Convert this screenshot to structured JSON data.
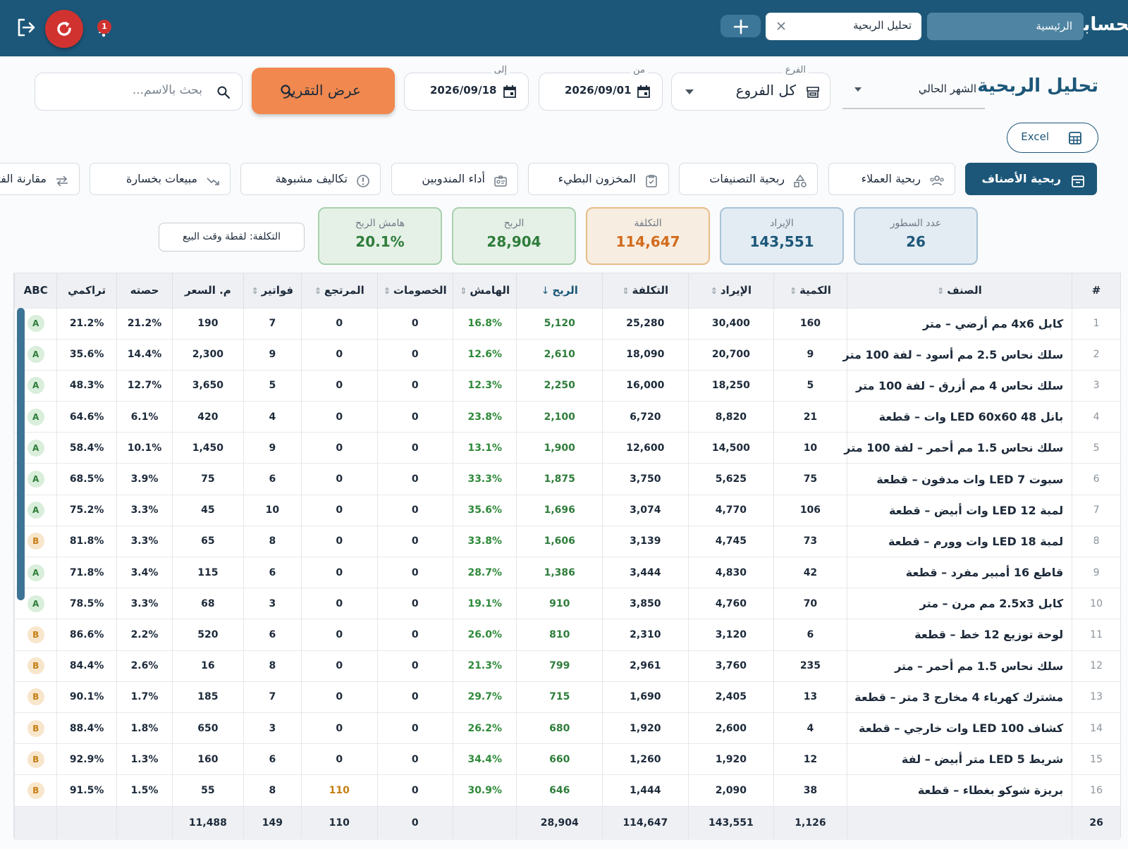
{
  "header": {
    "app_title": "الحسابات الثنائية",
    "tabs": [
      {
        "label": "الرئيسية"
      },
      {
        "label": "تحليل الربحية"
      }
    ],
    "notification_count": "1"
  },
  "filters": {
    "page_title": "تحليل الربحية",
    "period_value": "الشهر الحالي",
    "branch_caption": "الفرع",
    "branch_value": "كل الفروع",
    "from_caption": "من",
    "from_value": "2026/09/01",
    "to_caption": "إلى",
    "to_value": "2026/09/18",
    "report_button": "عرض التقرير",
    "search_placeholder": "بحث بالاسم..."
  },
  "excel_label": "Excel",
  "report_tabs": [
    {
      "label": "ربحية الأصناف",
      "active": true
    },
    {
      "label": "ربحية العملاء"
    },
    {
      "label": "ربحية التصنيفات"
    },
    {
      "label": "المخزون البطيء"
    },
    {
      "label": "أداء المندوبين"
    },
    {
      "label": "تكاليف مشبوهة"
    },
    {
      "label": "مبيعات بخسارة"
    },
    {
      "label": "مقارنة الفترات"
    }
  ],
  "kpis": [
    {
      "label": "عدد السطور",
      "value": "26"
    },
    {
      "label": "الإيراد",
      "value": "143,551"
    },
    {
      "label": "التكلفة",
      "value": "114,647"
    },
    {
      "label": "الربح",
      "value": "28,904"
    },
    {
      "label": "هامش الربح",
      "value": "20.1%"
    }
  ],
  "cost_note": "التكلفة: لقطة وقت البيع",
  "table": {
    "columns": [
      "#",
      "الصنف",
      "الكمية",
      "الإيراد",
      "التكلفة",
      "الربح",
      "الهامش",
      "الخصومات",
      "المرتجع",
      "فواتير",
      "م. السعر",
      "حصته",
      "تراكمي",
      "ABC"
    ],
    "rows": [
      [
        "1",
        "كابل 4x6 مم أرضي – متر",
        "160",
        "30,400",
        "25,280",
        "5,120",
        "16.8%",
        "0",
        "0",
        "7",
        "190",
        "21.2%",
        "21.2%",
        "A"
      ],
      [
        "2",
        "سلك نحاس 2.5 مم أسود – لفة 100 متر",
        "9",
        "20,700",
        "18,090",
        "2,610",
        "12.6%",
        "0",
        "0",
        "9",
        "2,300",
        "14.4%",
        "35.6%",
        "A"
      ],
      [
        "3",
        "سلك نحاس 4 مم أزرق – لفة 100 متر",
        "5",
        "18,250",
        "16,000",
        "2,250",
        "12.3%",
        "0",
        "0",
        "5",
        "3,650",
        "12.7%",
        "48.3%",
        "A"
      ],
      [
        "4",
        "بانل LED 60x60 48 وات – قطعة",
        "21",
        "8,820",
        "6,720",
        "2,100",
        "23.8%",
        "0",
        "0",
        "4",
        "420",
        "6.1%",
        "64.6%",
        "A"
      ],
      [
        "5",
        "سلك نحاس 1.5 مم أحمر – لفة 100 متر",
        "10",
        "14,500",
        "12,600",
        "1,900",
        "13.1%",
        "0",
        "0",
        "9",
        "1,450",
        "10.1%",
        "58.4%",
        "A"
      ],
      [
        "6",
        "سبوت LED 7 وات مدفون – قطعة",
        "75",
        "5,625",
        "3,750",
        "1,875",
        "33.3%",
        "0",
        "0",
        "6",
        "75",
        "3.9%",
        "68.5%",
        "A"
      ],
      [
        "7",
        "لمبة LED 12 وات أبيض – قطعة",
        "106",
        "4,770",
        "3,074",
        "1,696",
        "35.6%",
        "0",
        "0",
        "10",
        "45",
        "3.3%",
        "75.2%",
        "A"
      ],
      [
        "8",
        "لمبة LED 18 وات وورم – قطعة",
        "73",
        "4,745",
        "3,139",
        "1,606",
        "33.8%",
        "0",
        "0",
        "8",
        "65",
        "3.3%",
        "81.8%",
        "B"
      ],
      [
        "9",
        "قاطع 16 أمبير مفرد – قطعة",
        "42",
        "4,830",
        "3,444",
        "1,386",
        "28.7%",
        "0",
        "0",
        "6",
        "115",
        "3.4%",
        "71.8%",
        "A"
      ],
      [
        "10",
        "كابل 2.5x3 مم مرن – متر",
        "70",
        "4,760",
        "3,850",
        "910",
        "19.1%",
        "0",
        "0",
        "3",
        "68",
        "3.3%",
        "78.5%",
        "A"
      ],
      [
        "11",
        "لوحة توزيع 12 خط – قطعة",
        "6",
        "3,120",
        "2,310",
        "810",
        "26.0%",
        "0",
        "0",
        "6",
        "520",
        "2.2%",
        "86.6%",
        "B"
      ],
      [
        "12",
        "سلك نحاس 1.5 مم أحمر – متر",
        "235",
        "3,760",
        "2,961",
        "799",
        "21.3%",
        "0",
        "0",
        "8",
        "16",
        "2.6%",
        "84.4%",
        "B"
      ],
      [
        "13",
        "مشترك كهرباء 4 مخارج 3 متر – قطعة",
        "13",
        "2,405",
        "1,690",
        "715",
        "29.7%",
        "0",
        "0",
        "7",
        "185",
        "1.7%",
        "90.1%",
        "B"
      ],
      [
        "14",
        "كشاف LED 100 وات خارجي – قطعة",
        "4",
        "2,600",
        "1,920",
        "680",
        "26.2%",
        "0",
        "0",
        "3",
        "650",
        "1.8%",
        "88.4%",
        "B"
      ],
      [
        "15",
        "شريط LED 5 متر أبيض – لفة",
        "12",
        "1,920",
        "1,260",
        "660",
        "34.4%",
        "0",
        "0",
        "6",
        "160",
        "1.3%",
        "92.9%",
        "B"
      ],
      [
        "16",
        "بريزة شوكو بغطاء – قطعة",
        "38",
        "2,090",
        "1,444",
        "646",
        "30.9%",
        "0",
        "110",
        "8",
        "55",
        "1.5%",
        "91.5%",
        "B"
      ]
    ],
    "footer": [
      "26",
      "",
      "1,126",
      "143,551",
      "114,647",
      "28,904",
      "",
      "0",
      "110",
      "149",
      "11,488",
      "",
      "",
      ""
    ]
  },
  "colors": {
    "topbar": "#1c5779",
    "accent": "#f0884f",
    "danger": "#d0332f",
    "positive": "#2f8a3a",
    "warning": "#c57f13"
  }
}
